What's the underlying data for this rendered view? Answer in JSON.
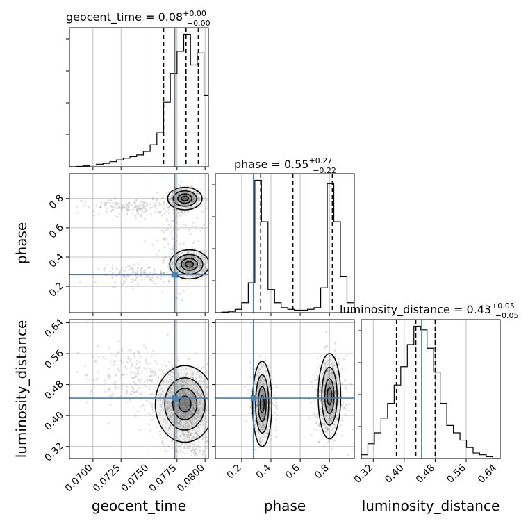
{
  "chart_data": {
    "type": "corner",
    "parameters": [
      "geocent_time",
      "phase",
      "luminosity_distance"
    ],
    "axis_labels": {
      "geocent_time": "geocent_time",
      "phase": "phase",
      "luminosity_distance": "luminosity_distance"
    },
    "ranges": {
      "geocent_time": [
        0.0679,
        0.0803
      ],
      "phase": [
        0.02,
        0.97
      ],
      "luminosity_distance": [
        0.289,
        0.648
      ]
    },
    "ticks": {
      "geocent_time": [
        0.07,
        0.0725,
        0.075,
        0.0775,
        0.08
      ],
      "phase": [
        0.2,
        0.4,
        0.6,
        0.8
      ],
      "luminosity_distance": [
        0.32,
        0.4,
        0.48,
        0.56,
        0.64
      ]
    },
    "tick_labels": {
      "geocent_time": [
        "0.0700",
        "0.0725",
        "0.0750",
        "0.0775",
        "0.0800"
      ],
      "phase": [
        "0.2",
        "0.4",
        "0.6",
        "0.8"
      ],
      "luminosity_distance": [
        "0.32",
        "0.40",
        "0.48",
        "0.56",
        "0.64"
      ]
    },
    "truths": {
      "geocent_time": 0.0773,
      "phase": 0.28,
      "luminosity_distance": 0.445
    },
    "titles": [
      {
        "param": "geocent_time",
        "name": "geocent_time",
        "median": "0.08",
        "plus": "+0.00",
        "minus": "−0.00"
      },
      {
        "param": "phase",
        "name": "phase",
        "median": "0.55",
        "plus": "+0.27",
        "minus": "−0.22"
      },
      {
        "param": "luminosity_distance",
        "name": "luminosity_distance",
        "median": "0.43",
        "plus": "+0.05",
        "minus": "−0.05"
      }
    ],
    "quantiles": {
      "geocent_time": [
        0.0763,
        0.0783,
        0.0794
      ],
      "phase": [
        0.33,
        0.55,
        0.82
      ],
      "luminosity_distance": [
        0.38,
        0.43,
        0.48
      ]
    },
    "histograms": {
      "geocent_time": {
        "edges": [
          0.0679,
          0.0685,
          0.0691,
          0.0697,
          0.0703,
          0.0709,
          0.0715,
          0.0721,
          0.0727,
          0.0733,
          0.0739,
          0.0745,
          0.0751,
          0.0757,
          0.0763,
          0.0769,
          0.0775,
          0.0781,
          0.0787,
          0.0793,
          0.0799,
          0.0805
        ],
        "counts": [
          0,
          0.2,
          0.5,
          1,
          1.5,
          2,
          3,
          4,
          5,
          6,
          7,
          9,
          13,
          20,
          38,
          55,
          68,
          78,
          60,
          67,
          42
        ]
      },
      "phase": {
        "edges": [
          0.02,
          0.065,
          0.11,
          0.155,
          0.2,
          0.245,
          0.29,
          0.335,
          0.38,
          0.425,
          0.47,
          0.515,
          0.56,
          0.605,
          0.65,
          0.695,
          0.74,
          0.785,
          0.83,
          0.875,
          0.92,
          0.965
        ],
        "counts": [
          0,
          0.3,
          0.8,
          2,
          6,
          18,
          80,
          55,
          14,
          6,
          3,
          2,
          1.5,
          1.5,
          2,
          3,
          15,
          78,
          55,
          22,
          6
        ]
      },
      "luminosity_distance": {
        "edges": [
          0.289,
          0.306,
          0.323,
          0.34,
          0.357,
          0.374,
          0.391,
          0.408,
          0.425,
          0.442,
          0.459,
          0.476,
          0.493,
          0.51,
          0.527,
          0.544,
          0.561,
          0.578,
          0.595,
          0.612,
          0.629,
          0.646
        ],
        "counts": [
          2,
          8,
          14,
          22,
          30,
          40,
          50,
          62,
          72,
          70,
          60,
          47,
          30,
          18,
          14,
          10,
          6,
          3,
          2,
          1,
          0
        ]
      }
    },
    "scatter_color": "#9a9a9a",
    "truth_color": "#4682b4",
    "grid": true
  }
}
